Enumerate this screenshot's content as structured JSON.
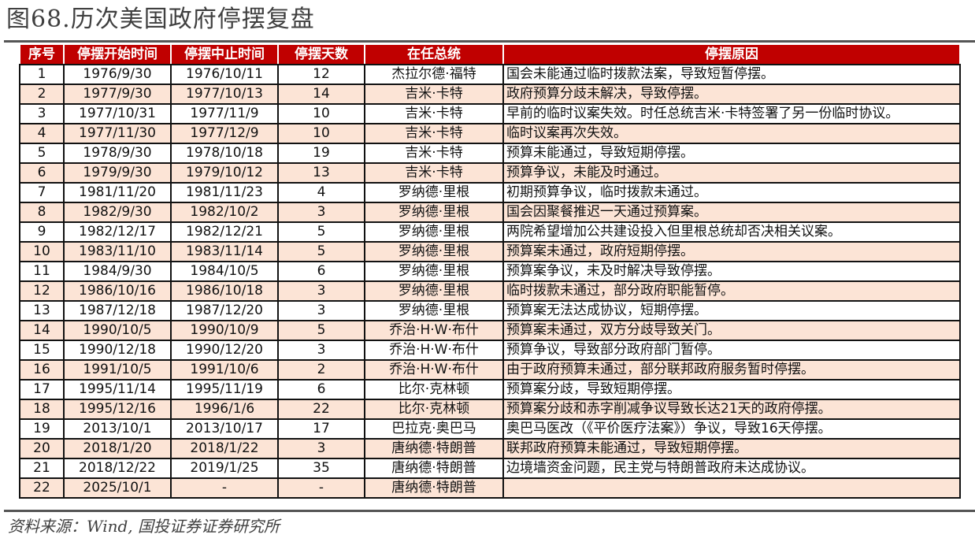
{
  "title": "图68.历次美国政府停摆复盘",
  "colors": {
    "header_bg": "#c00000",
    "alt_row_bg": "#fce4d6"
  },
  "table": {
    "headers": [
      "序号",
      "停摆开始时间",
      "停摆中止时间",
      "停摆天数",
      "在任总统",
      "停摆原因"
    ],
    "rows": [
      [
        "1",
        "1976/9/30",
        "1976/10/11",
        "12",
        "杰拉尔德·福特",
        "国会未能通过临时拨款法案，导致短暂停摆。"
      ],
      [
        "2",
        "1977/9/30",
        "1977/10/13",
        "14",
        "吉米·卡特",
        "政府预算分歧未解决，导致停摆。"
      ],
      [
        "3",
        "1977/10/31",
        "1977/11/9",
        "10",
        "吉米·卡特",
        "早前的临时议案失效。时任总统吉米·卡特签署了另一份临时协议。"
      ],
      [
        "4",
        "1977/11/30",
        "1977/12/9",
        "10",
        "吉米·卡特",
        "临时议案再次失效。"
      ],
      [
        "5",
        "1978/9/30",
        "1978/10/18",
        "19",
        "吉米·卡特",
        "预算未能通过，导致短期停摆。"
      ],
      [
        "6",
        "1979/9/30",
        "1979/10/12",
        "13",
        "吉米·卡特",
        "预算争议，未能及时通过。"
      ],
      [
        "7",
        "1981/11/20",
        "1981/11/23",
        "4",
        "罗纳德·里根",
        "初期预算争议，临时拨款未通过。"
      ],
      [
        "8",
        "1982/9/30",
        "1982/10/2",
        "3",
        "罗纳德·里根",
        "国会因聚餐推迟一天通过预算案。"
      ],
      [
        "9",
        "1982/12/17",
        "1982/12/21",
        "5",
        "罗纳德·里根",
        "两院希望增加公共建设投入但里根总统却否决相关议案。"
      ],
      [
        "10",
        "1983/11/10",
        "1983/11/14",
        "5",
        "罗纳德·里根",
        "预算案未通过，政府短期停摆。"
      ],
      [
        "11",
        "1984/9/30",
        "1984/10/5",
        "6",
        "罗纳德·里根",
        "预算案争议，未及时解决导致停摆。"
      ],
      [
        "12",
        "1986/10/16",
        "1986/10/18",
        "3",
        "罗纳德·里根",
        "临时拨款未通过，部分政府职能暂停。"
      ],
      [
        "13",
        "1987/12/18",
        "1987/12/20",
        "3",
        "罗纳德·里根",
        "预算案无法达成协议，短期停摆。"
      ],
      [
        "14",
        "1990/10/5",
        "1990/10/9",
        "5",
        "乔治·H·W·布什",
        "预算案未通过，双方分歧导致关门。"
      ],
      [
        "15",
        "1990/12/18",
        "1990/12/20",
        "3",
        "乔治·H·W·布什",
        "预算争议，导致部分政府部门暂停。"
      ],
      [
        "16",
        "1991/10/5",
        "1991/10/6",
        "2",
        "乔治·H·W·布什",
        "由于政府预算未通过，部分联邦政府服务暂时停摆。"
      ],
      [
        "17",
        "1995/11/14",
        "1995/11/19",
        "6",
        "比尔·克林顿",
        "预算案分歧，导致短期停摆。"
      ],
      [
        "18",
        "1995/12/16",
        "1996/1/6",
        "22",
        "比尔·克林顿",
        "预算案分歧和赤字削减争议导致长达21天的政府停摆。"
      ],
      [
        "19",
        "2013/10/1",
        "2013/10/17",
        "17",
        "巴拉克·奥巴马",
        "奥巴马医改（《平价医疗法案》）争议，导致16天停摆。"
      ],
      [
        "20",
        "2018/1/20",
        "2018/1/22",
        "3",
        "唐纳德·特朗普",
        "联邦政府预算未能通过，导致短期停摆。"
      ],
      [
        "21",
        "2018/12/22",
        "2019/1/25",
        "35",
        "唐纳德·特朗普",
        "边境墙资金问题，民主党与特朗普政府未达成协议。"
      ],
      [
        "22",
        "2025/10/1",
        "-",
        "-",
        "唐纳德·特朗普",
        ""
      ]
    ]
  },
  "source": "资料来源：Wind, 国投证券证券研究所"
}
